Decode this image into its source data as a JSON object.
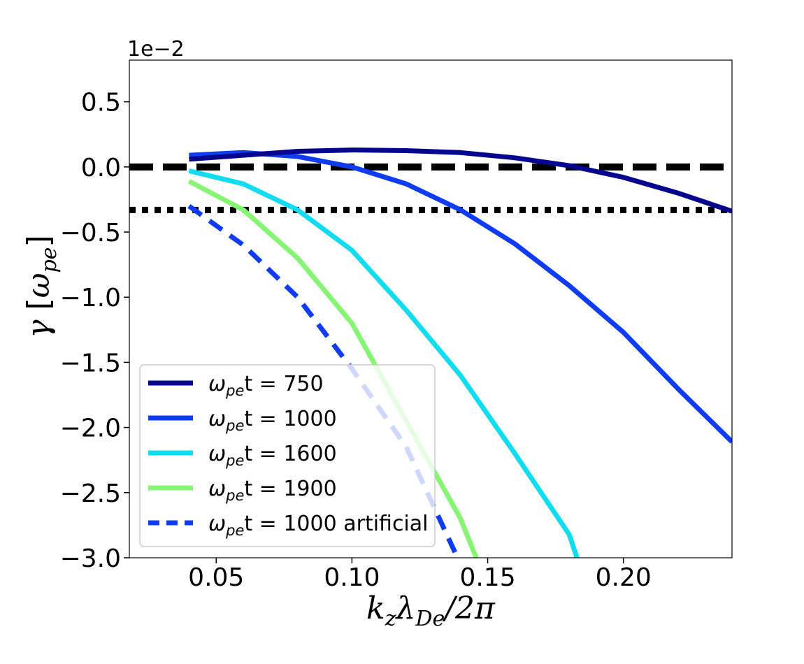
{
  "chart_data": {
    "type": "line",
    "xlabel": "k_zλ_De/2π",
    "ylabel": "γ   [ω_pe]",
    "scale_label": "1e−2",
    "xlim": [
      0.018,
      0.24
    ],
    "ylim": [
      -3.0,
      0.82
    ],
    "xticks": [
      0.05,
      0.1,
      0.15,
      0.2
    ],
    "xtick_labels": [
      "0.05",
      "0.10",
      "0.15",
      "0.20"
    ],
    "yticks": [
      0.5,
      0.0,
      -0.5,
      -1.0,
      -1.5,
      -2.0,
      -2.5,
      -3.0
    ],
    "ytick_labels": [
      "0.5",
      "0.0",
      "−0.5",
      "−1.0",
      "−1.5",
      "−2.0",
      "−2.5",
      "−3.0"
    ],
    "grid": false,
    "legend_position": "lower-left",
    "reference_lines": [
      {
        "name": "zero-growth",
        "y": 0.0,
        "style": "dashed",
        "color": "#000000"
      },
      {
        "name": "threshold",
        "y": -0.33,
        "style": "dotted",
        "color": "#000000"
      }
    ],
    "series": [
      {
        "name": "ω_pe t = 750",
        "legend_main": "ω",
        "legend_sub": "pe",
        "legend_rest": "t = 750",
        "color": "#06068f",
        "style": "solid",
        "x": [
          0.04,
          0.06,
          0.08,
          0.1,
          0.12,
          0.14,
          0.16,
          0.18,
          0.2,
          0.22,
          0.24
        ],
        "y": [
          0.06,
          0.09,
          0.12,
          0.13,
          0.125,
          0.11,
          0.07,
          0.01,
          -0.08,
          -0.2,
          -0.34
        ]
      },
      {
        "name": "ω_pe t = 1000",
        "legend_main": "ω",
        "legend_sub": "pe",
        "legend_rest": "t = 1000",
        "color": "#0f3cf0",
        "style": "solid",
        "x": [
          0.04,
          0.06,
          0.08,
          0.1,
          0.12,
          0.14,
          0.16,
          0.18,
          0.2,
          0.22,
          0.24
        ],
        "y": [
          0.09,
          0.11,
          0.08,
          0.0,
          -0.13,
          -0.33,
          -0.59,
          -0.91,
          -1.27,
          -1.7,
          -2.11
        ]
      },
      {
        "name": "ω_pe t = 1600",
        "legend_main": "ω",
        "legend_sub": "pe",
        "legend_rest": "t = 1600",
        "color": "#12dcf0",
        "style": "solid",
        "x": [
          0.04,
          0.06,
          0.08,
          0.1,
          0.12,
          0.14,
          0.16,
          0.18,
          0.1829
        ],
        "y": [
          -0.03,
          -0.13,
          -0.33,
          -0.64,
          -1.1,
          -1.6,
          -2.2,
          -2.82,
          -3.0
        ]
      },
      {
        "name": "ω_pe t = 1900",
        "legend_main": "ω",
        "legend_sub": "pe",
        "legend_rest": "t = 1900",
        "color": "#86f573",
        "style": "solid",
        "x": [
          0.04,
          0.06,
          0.08,
          0.1,
          0.12,
          0.14,
          0.1458
        ],
        "y": [
          -0.11,
          -0.33,
          -0.7,
          -1.2,
          -1.95,
          -2.7,
          -3.0
        ]
      },
      {
        "name": "ω_pe t = 1000 artificial",
        "legend_main": "ω",
        "legend_sub": "pe",
        "legend_rest": "t = 1000 artificial",
        "color": "#0f3cf0",
        "style": "dashed",
        "x": [
          0.04,
          0.06,
          0.08,
          0.1,
          0.12,
          0.13,
          0.1389
        ],
        "y": [
          -0.3,
          -0.6,
          -1.0,
          -1.55,
          -2.15,
          -2.6,
          -3.0
        ]
      }
    ]
  }
}
